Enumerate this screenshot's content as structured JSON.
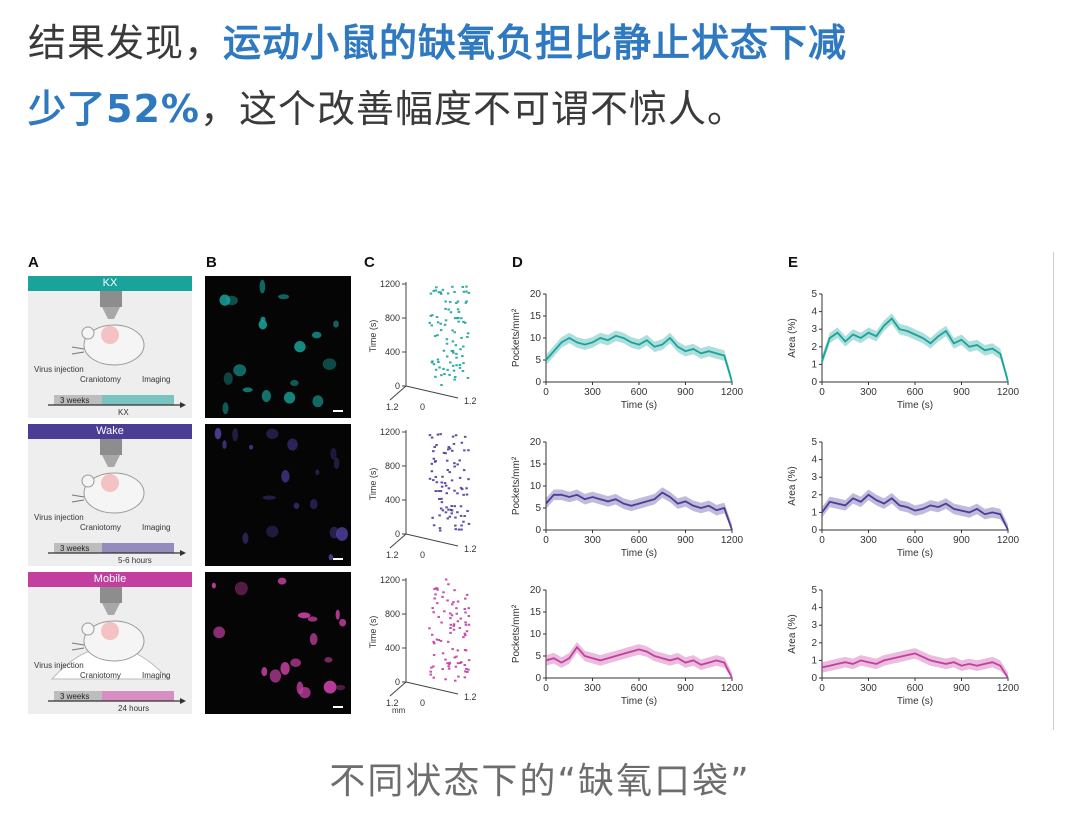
{
  "headline": {
    "prefix": "结果发现，",
    "highlight_line1": "运动小鼠的缺氧负担比静止状态下减",
    "highlight_line2": "少了52%",
    "suffix": "，这个改善幅度不可谓不惊人。"
  },
  "caption": "不同状态下的“缺氧口袋”",
  "figure": {
    "panel_labels": [
      "A",
      "B",
      "C",
      "D",
      "E"
    ],
    "colors": {
      "kx": "#1aa39b",
      "wake": "#4a3d96",
      "mobile": "#c23fa0"
    },
    "states": [
      {
        "key": "kx",
        "name": "KX",
        "timeline": {
          "virus": "Virus injection",
          "cranio": "Craniotomy",
          "imaging": "Imaging",
          "weeks": "3 weeks",
          "period": "KX"
        }
      },
      {
        "key": "wake",
        "name": "Wake",
        "timeline": {
          "virus": "Virus injection",
          "cranio": "Craniotomy",
          "imaging": "Imaging",
          "weeks": "3 weeks",
          "period": "5-6 hours"
        }
      },
      {
        "key": "mobile",
        "name": "Mobile",
        "timeline": {
          "virus": "Virus injection",
          "cranio": "Craniotomy",
          "imaging": "Imaging",
          "weeks": "3 weeks",
          "period": "24 hours"
        }
      }
    ],
    "raster": {
      "ylabel": "Time (s)",
      "yticks": [
        "0",
        "400",
        "800",
        "1200"
      ],
      "xtick_left": "1.2",
      "xtick_mid": "0",
      "xtick_right": "1.2",
      "xunit": "mm"
    }
  },
  "chart_data": [
    {
      "type": "line",
      "panel": "D",
      "state": "KX",
      "ylabel": "Pockets/mm²",
      "xlabel": "Time (s)",
      "xlim": [
        0,
        1200
      ],
      "ylim": [
        0,
        20
      ],
      "xticks": [
        0,
        300,
        600,
        900,
        1200
      ],
      "yticks": [
        0,
        5,
        10,
        15,
        20
      ],
      "x": [
        0,
        50,
        100,
        150,
        200,
        250,
        300,
        350,
        400,
        450,
        500,
        550,
        600,
        650,
        700,
        750,
        800,
        850,
        900,
        950,
        1000,
        1050,
        1100,
        1150,
        1200
      ],
      "series": [
        {
          "values": [
            5,
            7,
            9,
            10,
            9,
            8.5,
            9,
            10,
            9.5,
            10.5,
            10,
            9,
            8.5,
            9.5,
            8,
            8.5,
            10,
            8,
            7,
            7.5,
            6.5,
            7,
            6.5,
            6,
            0
          ]
        }
      ]
    },
    {
      "type": "line",
      "panel": "D",
      "state": "Wake",
      "ylabel": "Pockets/mm²",
      "xlabel": "Time (s)",
      "xlim": [
        0,
        1200
      ],
      "ylim": [
        0,
        20
      ],
      "xticks": [
        0,
        300,
        600,
        900,
        1200
      ],
      "yticks": [
        0,
        5,
        10,
        15,
        20
      ],
      "x": [
        0,
        50,
        100,
        150,
        200,
        250,
        300,
        350,
        400,
        450,
        500,
        550,
        600,
        650,
        700,
        750,
        800,
        850,
        900,
        950,
        1000,
        1050,
        1100,
        1150,
        1200
      ],
      "series": [
        {
          "values": [
            6,
            8,
            8,
            7.5,
            8,
            7,
            7.5,
            7,
            6.5,
            7,
            6,
            5.5,
            6,
            6.5,
            7,
            8.5,
            7.5,
            6,
            6.5,
            5.5,
            5,
            5.5,
            4.5,
            5,
            0
          ]
        }
      ]
    },
    {
      "type": "line",
      "panel": "D",
      "state": "Mobile",
      "ylabel": "Pockets/mm²",
      "xlabel": "Time (s)",
      "xlim": [
        0,
        1200
      ],
      "ylim": [
        0,
        20
      ],
      "xticks": [
        0,
        300,
        600,
        900,
        1200
      ],
      "yticks": [
        0,
        5,
        10,
        15,
        20
      ],
      "x": [
        0,
        50,
        100,
        150,
        200,
        250,
        300,
        350,
        400,
        450,
        500,
        550,
        600,
        650,
        700,
        750,
        800,
        850,
        900,
        950,
        1000,
        1050,
        1100,
        1150,
        1200
      ],
      "series": [
        {
          "values": [
            4,
            4.5,
            3.5,
            4.5,
            7,
            5,
            4.5,
            4,
            4.5,
            5,
            5.5,
            6,
            6.5,
            6,
            5,
            4.5,
            4,
            4.5,
            3.5,
            4,
            3,
            3.5,
            4,
            3.5,
            0
          ]
        }
      ]
    },
    {
      "type": "line",
      "panel": "E",
      "state": "KX",
      "ylabel": "Area (%)",
      "xlabel": "Time (s)",
      "xlim": [
        0,
        1200
      ],
      "ylim": [
        0,
        5
      ],
      "xticks": [
        0,
        300,
        600,
        900,
        1200
      ],
      "yticks": [
        0,
        1,
        2,
        3,
        4,
        5
      ],
      "x": [
        0,
        50,
        100,
        150,
        200,
        250,
        300,
        350,
        400,
        450,
        500,
        550,
        600,
        650,
        700,
        750,
        800,
        850,
        900,
        950,
        1000,
        1050,
        1100,
        1150,
        1200
      ],
      "series": [
        {
          "values": [
            1.2,
            2.5,
            2.8,
            2.3,
            2.7,
            2.5,
            2.8,
            2.6,
            3.2,
            3.6,
            3.0,
            2.9,
            2.7,
            2.5,
            2.2,
            2.6,
            2.9,
            2.2,
            2.4,
            2.0,
            2.1,
            1.8,
            1.9,
            1.6,
            0
          ]
        }
      ]
    },
    {
      "type": "line",
      "panel": "E",
      "state": "Wake",
      "ylabel": "Area (%)",
      "xlabel": "Time (s)",
      "xlim": [
        0,
        1200
      ],
      "ylim": [
        0,
        5
      ],
      "xticks": [
        0,
        300,
        600,
        900,
        1200
      ],
      "yticks": [
        0,
        1,
        2,
        3,
        4,
        5
      ],
      "x": [
        0,
        50,
        100,
        150,
        200,
        250,
        300,
        350,
        400,
        450,
        500,
        550,
        600,
        650,
        700,
        750,
        800,
        850,
        900,
        950,
        1000,
        1050,
        1100,
        1150,
        1200
      ],
      "series": [
        {
          "values": [
            1.0,
            1.6,
            1.5,
            1.4,
            1.8,
            1.6,
            2.0,
            1.7,
            1.5,
            1.8,
            1.4,
            1.3,
            1.1,
            1.2,
            1.4,
            1.3,
            1.5,
            1.2,
            1.1,
            1.0,
            1.2,
            0.9,
            1.0,
            0.9,
            0
          ]
        }
      ]
    },
    {
      "type": "line",
      "panel": "E",
      "state": "Mobile",
      "ylabel": "Area (%)",
      "xlabel": "Time (s)",
      "xlim": [
        0,
        1200
      ],
      "ylim": [
        0,
        5
      ],
      "xticks": [
        0,
        300,
        600,
        900,
        1200
      ],
      "yticks": [
        0,
        1,
        2,
        3,
        4,
        5
      ],
      "x": [
        0,
        50,
        100,
        150,
        200,
        250,
        300,
        350,
        400,
        450,
        500,
        550,
        600,
        650,
        700,
        750,
        800,
        850,
        900,
        950,
        1000,
        1050,
        1100,
        1150,
        1200
      ],
      "series": [
        {
          "values": [
            0.6,
            0.7,
            0.8,
            0.9,
            0.8,
            1.0,
            0.9,
            0.8,
            1.0,
            1.1,
            1.2,
            1.3,
            1.4,
            1.2,
            1.0,
            0.9,
            0.8,
            0.9,
            0.7,
            0.8,
            0.7,
            0.8,
            0.9,
            0.7,
            0
          ]
        }
      ]
    }
  ]
}
